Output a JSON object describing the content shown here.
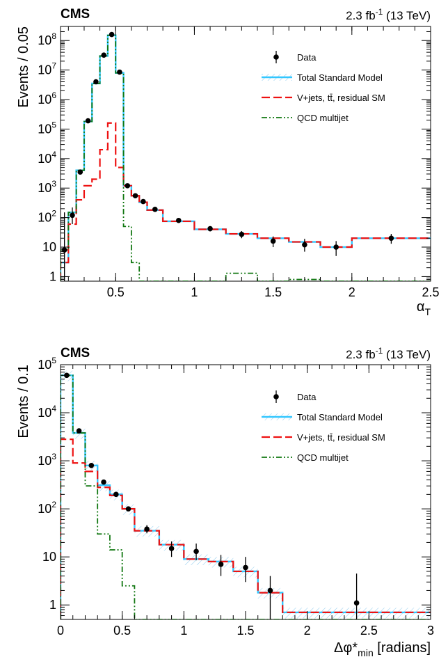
{
  "chart_data": [
    {
      "type": "step-histogram",
      "experiment": "CMS",
      "luminosity_label": "2.3 fb",
      "luminosity_sup": "-1",
      "energy_label": " (13 TeV)",
      "xlabel_main": "α",
      "xlabel_sub": "T",
      "ylabel": "Events / 0.05",
      "x_range": [
        0.15,
        2.5
      ],
      "y_range": [
        0.7,
        300000000
      ],
      "y_scale": "log",
      "x_ticks": [
        0.5,
        1,
        1.5,
        2,
        2.5
      ],
      "x_tick_labels": [
        "0.5",
        "1",
        "1.5",
        "2",
        "2.5"
      ],
      "y_ticks": [
        1,
        10,
        100,
        1000,
        10000,
        100000,
        1000000,
        10000000,
        100000000
      ],
      "y_tick_labels": [
        {
          "base": "1",
          "exp": ""
        },
        {
          "base": "10",
          "exp": ""
        },
        {
          "base": "10",
          "exp": "2"
        },
        {
          "base": "10",
          "exp": "3"
        },
        {
          "base": "10",
          "exp": "4"
        },
        {
          "base": "10",
          "exp": "5"
        },
        {
          "base": "10",
          "exp": "6"
        },
        {
          "base": "10",
          "exp": "7"
        },
        {
          "base": "10",
          "exp": "8"
        }
      ],
      "legend": [
        {
          "label": "Data",
          "style": "data"
        },
        {
          "label": "Total Standard Model",
          "style": "sm"
        },
        {
          "label": "V+jets, tt̄, residual SM",
          "style": "ewk"
        },
        {
          "label": "QCD multijet",
          "style": "qcd"
        }
      ],
      "legend_position": "top-right",
      "colors": {
        "data": "#000000",
        "sm": "#33c7ff",
        "ewk": "#ee1111",
        "qcd": "#117711",
        "band": "#8fcbee"
      },
      "edges": [
        0.15,
        0.2,
        0.25,
        0.3,
        0.35,
        0.4,
        0.45,
        0.5,
        0.55,
        0.6,
        0.65,
        0.7,
        0.8,
        1.0,
        1.2,
        1.4,
        1.6,
        1.8,
        2.0,
        2.5
      ],
      "sm": [
        3,
        150,
        4000,
        180000,
        3500000,
        30000000,
        150000000,
        8000000,
        1200,
        550,
        330,
        180,
        75,
        40,
        28,
        20,
        15,
        10,
        20
      ],
      "ewk": [
        3,
        60,
        400,
        1200,
        2000,
        20000,
        160000,
        5000,
        1200,
        550,
        330,
        180,
        75,
        40,
        28,
        20,
        15,
        10,
        20
      ],
      "qcd": [
        8,
        150,
        4000,
        180000,
        3500000,
        30000000,
        150000000,
        8000000,
        50,
        3,
        0.7,
        0.7,
        0.7,
        0.7,
        1.3,
        0.7,
        0.8,
        0.7,
        0.7
      ],
      "data_points": [
        {
          "x": 0.175,
          "y": 8,
          "lo": 0.7,
          "hi": 150
        },
        {
          "x": 0.225,
          "y": 120,
          "lo": 60,
          "hi": 220
        },
        {
          "x": 0.275,
          "y": 3500,
          "lo": 3000,
          "hi": 4200
        },
        {
          "x": 0.325,
          "y": 190000,
          "lo": 180000,
          "hi": 200000
        },
        {
          "x": 0.375,
          "y": 4000000,
          "lo": 3900000,
          "hi": 4100000
        },
        {
          "x": 0.425,
          "y": 32000000,
          "lo": 31000000,
          "hi": 33000000
        },
        {
          "x": 0.475,
          "y": 160000000,
          "lo": 155000000,
          "hi": 165000000
        },
        {
          "x": 0.525,
          "y": 8500000,
          "lo": 8300000,
          "hi": 8700000
        },
        {
          "x": 0.575,
          "y": 1200,
          "lo": 1100,
          "hi": 1300
        },
        {
          "x": 0.625,
          "y": 550,
          "lo": 500,
          "hi": 600
        },
        {
          "x": 0.675,
          "y": 350,
          "lo": 320,
          "hi": 380
        },
        {
          "x": 0.75,
          "y": 190,
          "lo": 170,
          "hi": 210
        },
        {
          "x": 0.9,
          "y": 80,
          "lo": 70,
          "hi": 92
        },
        {
          "x": 1.1,
          "y": 42,
          "lo": 34,
          "hi": 50
        },
        {
          "x": 1.3,
          "y": 27,
          "lo": 20,
          "hi": 35
        },
        {
          "x": 1.5,
          "y": 16,
          "lo": 10,
          "hi": 23
        },
        {
          "x": 1.7,
          "y": 12,
          "lo": 7,
          "hi": 19
        },
        {
          "x": 1.9,
          "y": 10,
          "lo": 5,
          "hi": 16
        },
        {
          "x": 2.25,
          "y": 20,
          "lo": 13,
          "hi": 28
        }
      ]
    },
    {
      "type": "step-histogram",
      "experiment": "CMS",
      "luminosity_label": "2.3 fb",
      "luminosity_sup": "-1",
      "energy_label": " (13 TeV)",
      "xlabel_main": "Δφ*",
      "xlabel_sub": "min",
      "xlabel_tail": " [radians]",
      "ylabel": "Events / 0.1",
      "x_range": [
        0,
        3
      ],
      "y_range": [
        0.5,
        100000
      ],
      "y_scale": "log",
      "x_ticks": [
        0,
        0.5,
        1,
        1.5,
        2,
        2.5,
        3
      ],
      "x_tick_labels": [
        "0",
        "0.5",
        "1",
        "1.5",
        "2",
        "2.5",
        "3"
      ],
      "y_ticks": [
        1,
        10,
        100,
        1000,
        10000,
        100000
      ],
      "y_tick_labels": [
        {
          "base": "1",
          "exp": ""
        },
        {
          "base": "10",
          "exp": ""
        },
        {
          "base": "10",
          "exp": "2"
        },
        {
          "base": "10",
          "exp": "3"
        },
        {
          "base": "10",
          "exp": "4"
        },
        {
          "base": "10",
          "exp": "5"
        }
      ],
      "legend": [
        {
          "label": "Data",
          "style": "data"
        },
        {
          "label": "Total Standard Model",
          "style": "sm"
        },
        {
          "label": "V+jets, tt̄, residual SM",
          "style": "ewk"
        },
        {
          "label": "QCD multijet",
          "style": "qcd"
        }
      ],
      "legend_position": "top-right",
      "colors": {
        "data": "#000000",
        "sm": "#33c7ff",
        "ewk": "#ee1111",
        "qcd": "#117711",
        "band": "#8fcbee"
      },
      "edges": [
        0,
        0.1,
        0.2,
        0.3,
        0.4,
        0.5,
        0.6,
        0.8,
        1.0,
        1.2,
        1.4,
        1.6,
        1.8,
        3.0
      ],
      "sm": [
        60000,
        3800,
        800,
        310,
        200,
        100,
        35,
        18,
        9,
        8,
        5,
        1.8,
        0.7
      ],
      "ewk": [
        2800,
        900,
        600,
        280,
        190,
        100,
        35,
        18,
        9,
        8,
        5,
        1.8,
        0.7
      ],
      "qcd": [
        60000,
        3800,
        300,
        30,
        14,
        2.5,
        0.5,
        0.5,
        0.5,
        0.5,
        0.5,
        0.5,
        0.5
      ],
      "data_points": [
        {
          "x": 0.05,
          "y": 60000,
          "lo": 58000,
          "hi": 62000
        },
        {
          "x": 0.15,
          "y": 4200,
          "lo": 4000,
          "hi": 4400
        },
        {
          "x": 0.25,
          "y": 800,
          "lo": 750,
          "hi": 850
        },
        {
          "x": 0.35,
          "y": 360,
          "lo": 330,
          "hi": 390
        },
        {
          "x": 0.45,
          "y": 200,
          "lo": 180,
          "hi": 220
        },
        {
          "x": 0.55,
          "y": 100,
          "lo": 90,
          "hi": 110
        },
        {
          "x": 0.7,
          "y": 38,
          "lo": 31,
          "hi": 46
        },
        {
          "x": 0.9,
          "y": 15,
          "lo": 10,
          "hi": 21
        },
        {
          "x": 1.1,
          "y": 13,
          "lo": 8.5,
          "hi": 19
        },
        {
          "x": 1.3,
          "y": 7,
          "lo": 4,
          "hi": 11
        },
        {
          "x": 1.5,
          "y": 6,
          "lo": 3,
          "hi": 10
        },
        {
          "x": 1.7,
          "y": 2,
          "lo": 0.5,
          "hi": 4
        },
        {
          "x": 2.4,
          "y": 1.1,
          "lo": 0.5,
          "hi": 4.5
        }
      ]
    }
  ]
}
